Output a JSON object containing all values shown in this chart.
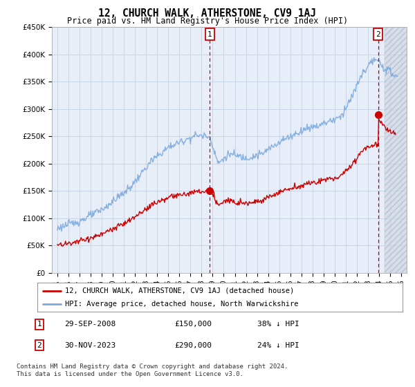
{
  "title": "12, CHURCH WALK, ATHERSTONE, CV9 1AJ",
  "subtitle": "Price paid vs. HM Land Registry's House Price Index (HPI)",
  "title_fontsize": 10.5,
  "subtitle_fontsize": 8.5,
  "ylim": [
    0,
    450000
  ],
  "yticks": [
    0,
    50000,
    100000,
    150000,
    200000,
    250000,
    300000,
    350000,
    400000,
    450000
  ],
  "ytick_labels": [
    "£0",
    "£50K",
    "£100K",
    "£150K",
    "£200K",
    "£250K",
    "£300K",
    "£350K",
    "£400K",
    "£450K"
  ],
  "xlim_start": 1994.5,
  "xlim_end": 2026.5,
  "background_color": "#ffffff",
  "plot_bg_color": "#e8eef8",
  "hatch_bg_color": "#d8d8d8",
  "grid_color": "#c8d4e8",
  "red_line_color": "#cc0000",
  "blue_line_color": "#7aaadd",
  "annotation_line_color": "#cc0000",
  "sale1_x": 2008.75,
  "sale1_y": 150000,
  "sale1_label": "1",
  "sale2_x": 2023.917,
  "sale2_y": 290000,
  "sale2_label": "2",
  "hatch_start": 2024.5,
  "legend_red_label": "12, CHURCH WALK, ATHERSTONE, CV9 1AJ (detached house)",
  "legend_blue_label": "HPI: Average price, detached house, North Warwickshire",
  "table_row1": [
    "1",
    "29-SEP-2008",
    "£150,000",
    "38% ↓ HPI"
  ],
  "table_row2": [
    "2",
    "30-NOV-2023",
    "£290,000",
    "24% ↓ HPI"
  ],
  "footer": "Contains HM Land Registry data © Crown copyright and database right 2024.\nThis data is licensed under the Open Government Licence v3.0.",
  "footer_fontsize": 6.5,
  "xtick_years": [
    1995,
    1996,
    1997,
    1998,
    1999,
    2000,
    2001,
    2002,
    2003,
    2004,
    2005,
    2006,
    2007,
    2008,
    2009,
    2010,
    2011,
    2012,
    2013,
    2014,
    2015,
    2016,
    2017,
    2018,
    2019,
    2020,
    2021,
    2022,
    2023,
    2024,
    2025,
    2026
  ]
}
